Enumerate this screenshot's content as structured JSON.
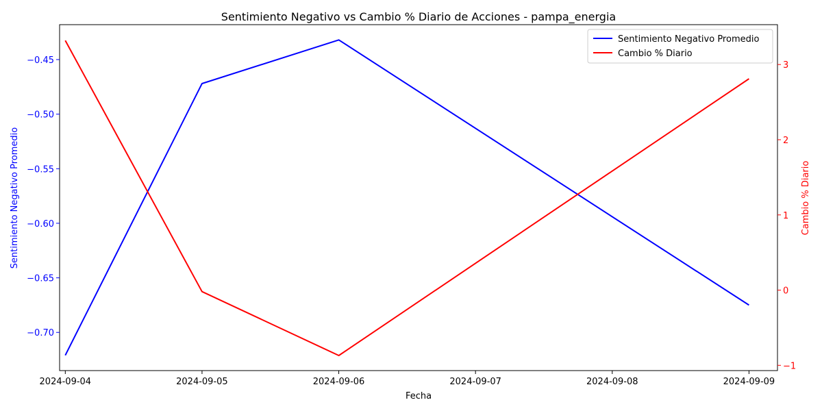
{
  "chart_data": {
    "type": "line",
    "title": "Sentimiento Negativo vs Cambio % Diario de Acciones - pampa_energia",
    "xlabel": "Fecha",
    "x": [
      "2024-09-04",
      "2024-09-05",
      "2024-09-06",
      "2024-09-09"
    ],
    "xticks": [
      "2024-09-04",
      "2024-09-05",
      "2024-09-06",
      "2024-09-07",
      "2024-09-08",
      "2024-09-09"
    ],
    "xlim": [
      "2024-09-03T23:00",
      "2024-09-09T05:00"
    ],
    "left_axis": {
      "label": "Sentimiento Negativo Promedio",
      "color": "#0000ff",
      "ylim": [
        -0.735,
        -0.418
      ],
      "ticks": [
        -0.7,
        -0.65,
        -0.6,
        -0.55,
        -0.5,
        -0.45
      ],
      "tick_labels": [
        "−0.70",
        "−0.65",
        "−0.60",
        "−0.55",
        "−0.50",
        "−0.45"
      ]
    },
    "right_axis": {
      "label": "Cambio % Diario",
      "color": "#ff0000",
      "ylim": [
        -1.07,
        3.53
      ],
      "ticks": [
        -1,
        0,
        1,
        2,
        3
      ],
      "tick_labels": [
        "−1",
        "0",
        "1",
        "2",
        "3"
      ]
    },
    "series": [
      {
        "name": "Sentimiento Negativo Promedio",
        "axis": "left",
        "color": "#0000ff",
        "values": [
          -0.721,
          -0.472,
          -0.432,
          -0.675
        ]
      },
      {
        "name": "Cambio % Diario",
        "axis": "right",
        "color": "#ff0000",
        "values": [
          3.32,
          -0.02,
          -0.87,
          2.81
        ]
      }
    ],
    "legend": {
      "position": "top-right"
    },
    "grid": false
  }
}
